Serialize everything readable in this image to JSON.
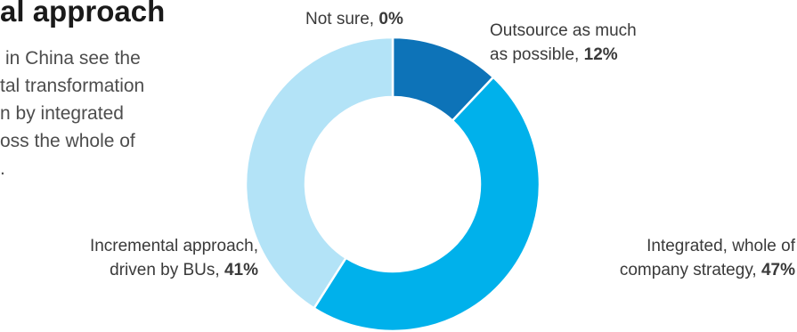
{
  "heading": "al approach",
  "body_lines": [
    "in China see the",
    "tal transformation",
    "n by integrated",
    "oss the whole of",
    "."
  ],
  "chart_data": {
    "type": "pie",
    "style": "donut",
    "categories": [
      "Not sure",
      "Outsource as much as possible",
      "Integrated, whole of company strategy",
      "Incremental approach, driven by BUs"
    ],
    "values": [
      0,
      12,
      47,
      41
    ],
    "unit": "%",
    "labels": [
      {
        "lines": [
          "Not sure,"
        ],
        "pct": "0%"
      },
      {
        "lines": [
          "Outsource as much",
          "as possible,"
        ],
        "pct": "12%"
      },
      {
        "lines": [
          "Integrated, whole of",
          "company strategy,"
        ],
        "pct": "47%"
      },
      {
        "lines": [
          "Incremental approach,",
          "driven by BUs,"
        ],
        "pct": "41%"
      }
    ],
    "colors": [
      "#0d73b8",
      "#0d73b8",
      "#00b1eb",
      "#b3e3f7"
    ]
  }
}
